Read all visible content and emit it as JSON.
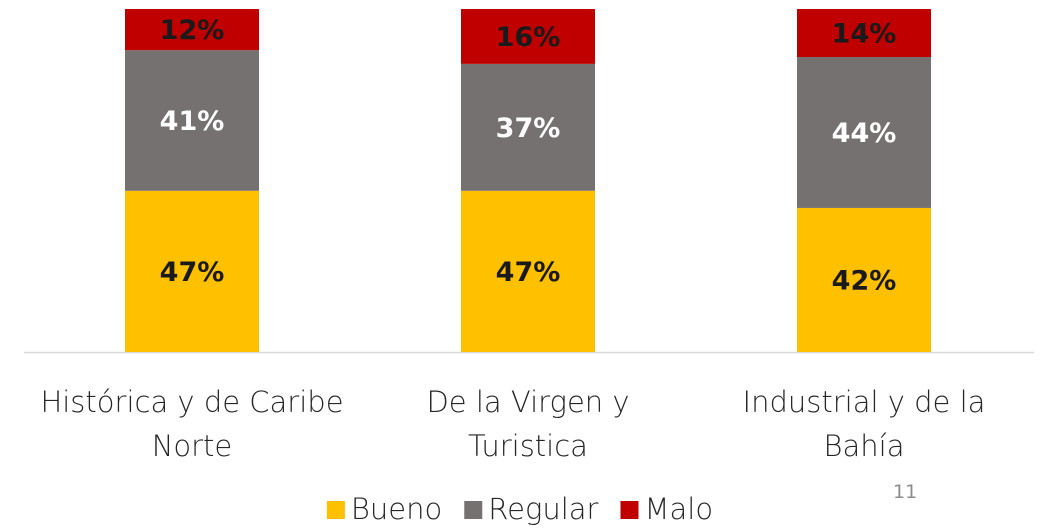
{
  "chart_data": {
    "type": "stacked_bar",
    "categories": [
      "Histórica y de Caribe Norte",
      "De la Virgen y Turistica",
      "Industrial y de la Bahía"
    ],
    "series": [
      {
        "name": "Bueno",
        "color": "#FFC000",
        "label_color": "#1a1a1a",
        "values": [
          47,
          47,
          42
        ],
        "value_labels": [
          "47%",
          "47%",
          "42%"
        ]
      },
      {
        "name": "Regular",
        "color": "#767171",
        "label_color": "#ffffff",
        "values": [
          41,
          37,
          44
        ],
        "value_labels": [
          "41%",
          "37%",
          "44%"
        ]
      },
      {
        "name": "Malo",
        "color": "#C00000",
        "label_color": "#1a1a1a",
        "values": [
          12,
          16,
          14
        ],
        "value_labels": [
          "12%",
          "16%",
          "14%"
        ]
      }
    ],
    "legend": "bottom"
  },
  "page_number": "11"
}
